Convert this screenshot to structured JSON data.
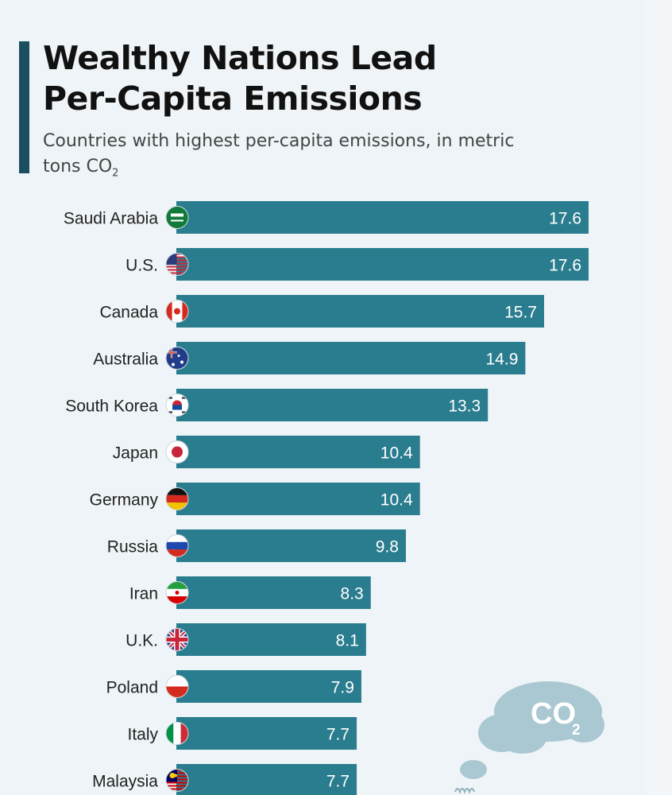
{
  "title": "Wealthy Nations Lead\nPer-Capita Emissions",
  "subtitle": {
    "text": "Countries with highest per-capita emissions, in metric tons CO",
    "subscript": "2"
  },
  "colors": {
    "bar": "#2a7d8e",
    "title_accent": "#1b4e5e",
    "background": "#eef4f7",
    "cloud": "#a9c8d2"
  },
  "decoration": {
    "cloud_text": "CO",
    "cloud_subscript": "2"
  },
  "chart_data": {
    "type": "bar",
    "orientation": "horizontal",
    "categories": [
      "Saudi Arabia",
      "U.S.",
      "Canada",
      "Australia",
      "South Korea",
      "Japan",
      "Germany",
      "Russia",
      "Iran",
      "U.K.",
      "Poland",
      "Italy",
      "Malaysia"
    ],
    "values": [
      17.6,
      17.6,
      15.7,
      14.9,
      13.3,
      10.4,
      10.4,
      9.8,
      8.3,
      8.1,
      7.9,
      7.7,
      7.7
    ],
    "labels": [
      "17.6",
      "17.6",
      "15.7",
      "14.9",
      "13.3",
      "10.4",
      "10.4",
      "9.8",
      "8.3",
      "8.1",
      "7.9",
      "7.7",
      "7.7"
    ],
    "flag_icons": [
      "saudi-arabia-flag-icon",
      "us-flag-icon",
      "canada-flag-icon",
      "australia-flag-icon",
      "south-korea-flag-icon",
      "japan-flag-icon",
      "germany-flag-icon",
      "russia-flag-icon",
      "iran-flag-icon",
      "uk-flag-icon",
      "poland-flag-icon",
      "italy-flag-icon",
      "malaysia-flag-icon"
    ],
    "xlim": [
      0,
      17.6
    ],
    "grid": false,
    "legend": "none"
  }
}
